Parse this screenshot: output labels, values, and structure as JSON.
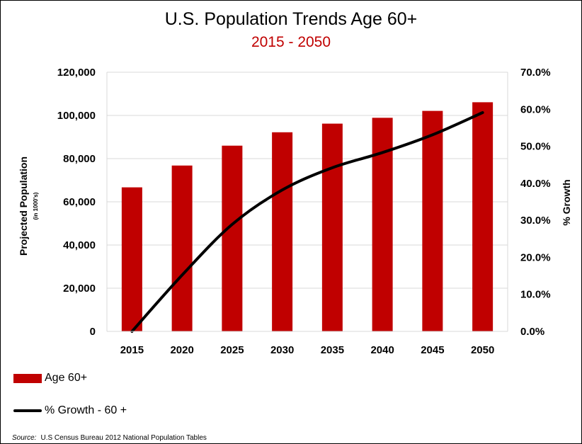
{
  "chart_data": {
    "type": "bar+line",
    "title": "U.S. Population Trends Age 60+",
    "subtitle": "2015 - 2050",
    "categories": [
      "2015",
      "2020",
      "2025",
      "2030",
      "2035",
      "2040",
      "2045",
      "2050"
    ],
    "series": [
      {
        "name": "Age 60+",
        "type": "bar",
        "axis": "left",
        "values": [
          66700,
          76800,
          86000,
          92200,
          96200,
          98900,
          102100,
          106100
        ]
      },
      {
        "name": "% Growth - 60 +",
        "type": "line",
        "axis": "right",
        "values": [
          0.0,
          15.2,
          28.9,
          38.2,
          44.2,
          48.3,
          53.1,
          59.1
        ]
      }
    ],
    "ylabel": "Projected Population",
    "ylabel_sub": "(in 1000's)",
    "y2label": "% Growth",
    "ylim": [
      0,
      120000
    ],
    "y2lim": [
      0,
      70
    ],
    "yticks": [
      "0",
      "20,000",
      "40,000",
      "60,000",
      "80,000",
      "100,000",
      "120,000"
    ],
    "y2ticks": [
      "0.0%",
      "10.0%",
      "20.0%",
      "30.0%",
      "40.0%",
      "50.0%",
      "60.0%",
      "70.0%"
    ],
    "grid": true,
    "legend": "bottom-left",
    "colors": {
      "bar": "#c00000",
      "line": "#000000",
      "grid": "#d9d9d9"
    }
  },
  "legend": {
    "bar_label": "Age 60+",
    "line_label": "% Growth - 60 +"
  },
  "source": {
    "label": "Source:",
    "text": "U.S Census Bureau 2012 National Population Tables"
  }
}
